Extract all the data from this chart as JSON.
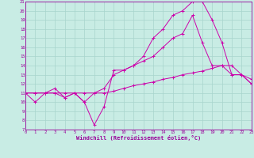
{
  "xlabel": "Windchill (Refroidissement éolien,°C)",
  "background_color": "#c8ece4",
  "grid_color": "#a8d4cc",
  "line_color": "#cc00aa",
  "spine_color": "#990099",
  "xmin": 0,
  "xmax": 23,
  "ymin": 7,
  "ymax": 21,
  "series": [
    {
      "x": [
        0,
        1,
        2,
        3,
        4,
        5,
        6,
        7,
        8,
        9,
        10,
        11,
        12,
        13,
        14,
        15,
        16,
        17,
        18,
        19,
        20,
        21,
        22,
        23
      ],
      "y": [
        11,
        10,
        11,
        11,
        10.5,
        11,
        10,
        7.5,
        9.5,
        13.5,
        13.5,
        14,
        15,
        17,
        18,
        19.5,
        20,
        21,
        21,
        19,
        16.5,
        13,
        13,
        12
      ]
    },
    {
      "x": [
        0,
        1,
        2,
        3,
        4,
        5,
        6,
        7,
        8,
        9,
        10,
        11,
        12,
        13,
        14,
        15,
        16,
        17,
        18,
        19,
        20,
        21,
        22,
        23
      ],
      "y": [
        11,
        11,
        11,
        11,
        11,
        11,
        11,
        11,
        11,
        11.2,
        11.5,
        11.8,
        12.0,
        12.2,
        12.5,
        12.7,
        13.0,
        13.2,
        13.4,
        13.7,
        14.0,
        14.0,
        13.0,
        12.0
      ]
    },
    {
      "x": [
        0,
        1,
        2,
        3,
        4,
        5,
        6,
        7,
        8,
        9,
        10,
        11,
        12,
        13,
        14,
        15,
        16,
        17,
        18,
        19,
        20,
        21,
        22,
        23
      ],
      "y": [
        11,
        11,
        11,
        11.5,
        10.5,
        11,
        10,
        11,
        11.5,
        13,
        13.5,
        14,
        14.5,
        15,
        16,
        17,
        17.5,
        19.5,
        16.5,
        14,
        14,
        13,
        13,
        12.5
      ]
    }
  ]
}
